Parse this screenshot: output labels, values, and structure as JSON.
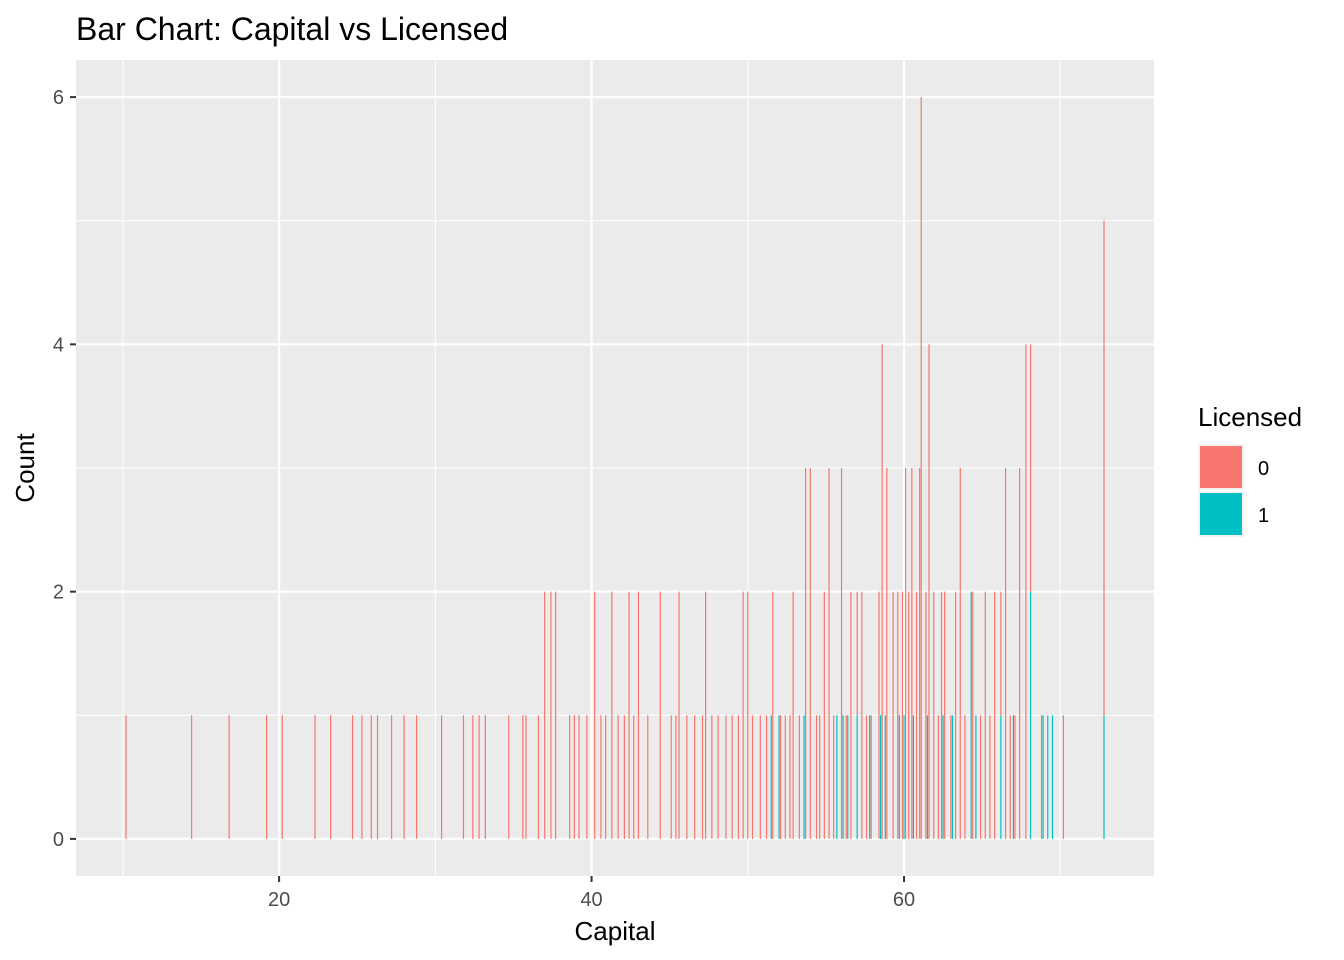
{
  "chart_data": {
    "type": "bar",
    "title": "Bar Chart: Capital vs Licensed",
    "xlabel": "Capital",
    "ylabel": "Count",
    "xlim": [
      7,
      76
    ],
    "ylim": [
      -0.3,
      6.3
    ],
    "x_ticks": [
      20,
      40,
      60
    ],
    "y_ticks": [
      0,
      2,
      4,
      6
    ],
    "grid": true,
    "legend": {
      "title": "Licensed",
      "placement": "right",
      "entries": [
        {
          "label": "0",
          "color": "#F8766D"
        },
        {
          "label": "1",
          "color": "#00BFC4"
        }
      ]
    },
    "stacked": true,
    "series": [
      {
        "name": "0",
        "color": "#F8766D",
        "points": [
          [
            10.2,
            1
          ],
          [
            14.4,
            1
          ],
          [
            16.8,
            1
          ],
          [
            19.2,
            1
          ],
          [
            20.2,
            1
          ],
          [
            22.3,
            1
          ],
          [
            23.3,
            1
          ],
          [
            24.7,
            1
          ],
          [
            25.3,
            1
          ],
          [
            25.9,
            1
          ],
          [
            26.3,
            1
          ],
          [
            27.2,
            1
          ],
          [
            28.0,
            1
          ],
          [
            28.8,
            1
          ],
          [
            30.4,
            1
          ],
          [
            31.8,
            1
          ],
          [
            32.4,
            1
          ],
          [
            32.8,
            1
          ],
          [
            33.2,
            1
          ],
          [
            34.7,
            1
          ],
          [
            35.6,
            1
          ],
          [
            35.8,
            1
          ],
          [
            36.6,
            1
          ],
          [
            37.0,
            2
          ],
          [
            37.4,
            2
          ],
          [
            37.7,
            2
          ],
          [
            38.6,
            1
          ],
          [
            38.9,
            1
          ],
          [
            39.2,
            1
          ],
          [
            39.7,
            1
          ],
          [
            40.2,
            2
          ],
          [
            40.6,
            1
          ],
          [
            40.9,
            1
          ],
          [
            41.3,
            2
          ],
          [
            41.7,
            1
          ],
          [
            42.1,
            1
          ],
          [
            42.4,
            2
          ],
          [
            42.7,
            1
          ],
          [
            43.0,
            2
          ],
          [
            43.6,
            1
          ],
          [
            44.4,
            2
          ],
          [
            45.1,
            1
          ],
          [
            45.4,
            1
          ],
          [
            45.6,
            2
          ],
          [
            46.1,
            1
          ],
          [
            46.6,
            1
          ],
          [
            47.1,
            1
          ],
          [
            47.3,
            2
          ],
          [
            47.7,
            1
          ],
          [
            48.1,
            1
          ],
          [
            48.6,
            1
          ],
          [
            49.0,
            1
          ],
          [
            49.4,
            1
          ],
          [
            49.7,
            2
          ],
          [
            50.0,
            2
          ],
          [
            50.3,
            1
          ],
          [
            50.8,
            1
          ],
          [
            51.2,
            1
          ],
          [
            51.6,
            2
          ],
          [
            52.1,
            1
          ],
          [
            52.4,
            1
          ],
          [
            52.7,
            1
          ],
          [
            52.9,
            2
          ],
          [
            53.3,
            1
          ],
          [
            53.7,
            3
          ],
          [
            54.0,
            3
          ],
          [
            54.4,
            1
          ],
          [
            54.6,
            1
          ],
          [
            54.9,
            2
          ],
          [
            55.2,
            3
          ],
          [
            55.5,
            1
          ],
          [
            56.0,
            3
          ],
          [
            56.3,
            1
          ],
          [
            56.6,
            2
          ],
          [
            57.0,
            1
          ],
          [
            57.3,
            2
          ],
          [
            57.6,
            1
          ],
          [
            57.9,
            1
          ],
          [
            58.4,
            2
          ],
          [
            58.6,
            4
          ],
          [
            58.9,
            3
          ],
          [
            59.3,
            2
          ],
          [
            59.6,
            2
          ],
          [
            59.9,
            2
          ],
          [
            60.1,
            3
          ],
          [
            60.3,
            2
          ],
          [
            60.5,
            3
          ],
          [
            60.8,
            2
          ],
          [
            61.0,
            3
          ],
          [
            61.1,
            6
          ],
          [
            61.4,
            2
          ],
          [
            61.6,
            4
          ],
          [
            61.9,
            2
          ],
          [
            62.2,
            1
          ],
          [
            62.4,
            2
          ],
          [
            62.6,
            2
          ],
          [
            63.0,
            1
          ],
          [
            63.3,
            2
          ],
          [
            63.6,
            3
          ],
          [
            63.9,
            1
          ],
          [
            64.4,
            2
          ],
          [
            64.9,
            1
          ],
          [
            65.2,
            2
          ],
          [
            65.5,
            1
          ],
          [
            65.8,
            2
          ],
          [
            66.2,
            1
          ],
          [
            66.5,
            3
          ],
          [
            66.8,
            1
          ],
          [
            67.1,
            1
          ],
          [
            67.4,
            3
          ],
          [
            67.8,
            4
          ],
          [
            68.1,
            2
          ],
          [
            68.8,
            1
          ],
          [
            70.2,
            1
          ],
          [
            72.8,
            4
          ]
        ]
      },
      {
        "name": "1",
        "color": "#00BFC4",
        "points": [
          [
            51.5,
            1
          ],
          [
            52.0,
            1
          ],
          [
            53.6,
            1
          ],
          [
            55.7,
            1
          ],
          [
            56.1,
            1
          ],
          [
            56.4,
            1
          ],
          [
            57.0,
            1
          ],
          [
            57.8,
            1
          ],
          [
            58.5,
            1
          ],
          [
            58.8,
            1
          ],
          [
            59.7,
            1
          ],
          [
            60.0,
            1
          ],
          [
            60.6,
            1
          ],
          [
            61.5,
            1
          ],
          [
            62.5,
            1
          ],
          [
            63.1,
            1
          ],
          [
            64.3,
            2
          ],
          [
            64.6,
            1
          ],
          [
            66.2,
            1
          ],
          [
            67.0,
            1
          ],
          [
            68.1,
            2
          ],
          [
            68.9,
            1
          ],
          [
            69.2,
            1
          ],
          [
            69.5,
            1
          ],
          [
            72.8,
            1
          ]
        ]
      }
    ]
  }
}
